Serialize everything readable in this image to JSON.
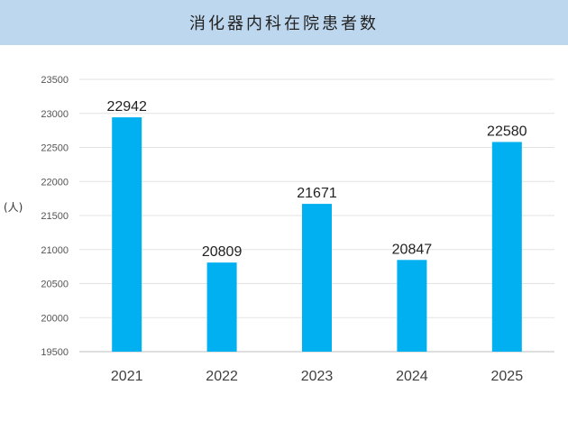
{
  "title": "消化器内科在院患者数",
  "unit_label": "(人)",
  "chart_data": {
    "type": "bar",
    "title": "消化器内科在院患者数",
    "ylabel": "(人)",
    "categories": [
      "2021",
      "2022",
      "2023",
      "2024",
      "2025"
    ],
    "values": [
      22942,
      20809,
      21671,
      20847,
      22580
    ],
    "ylim": [
      19500,
      23500
    ],
    "yticks": [
      19500,
      20000,
      20500,
      21000,
      21500,
      22000,
      22500,
      23000,
      23500
    ],
    "grid": true,
    "legend": "none",
    "bar_color": "#00b0f0"
  }
}
